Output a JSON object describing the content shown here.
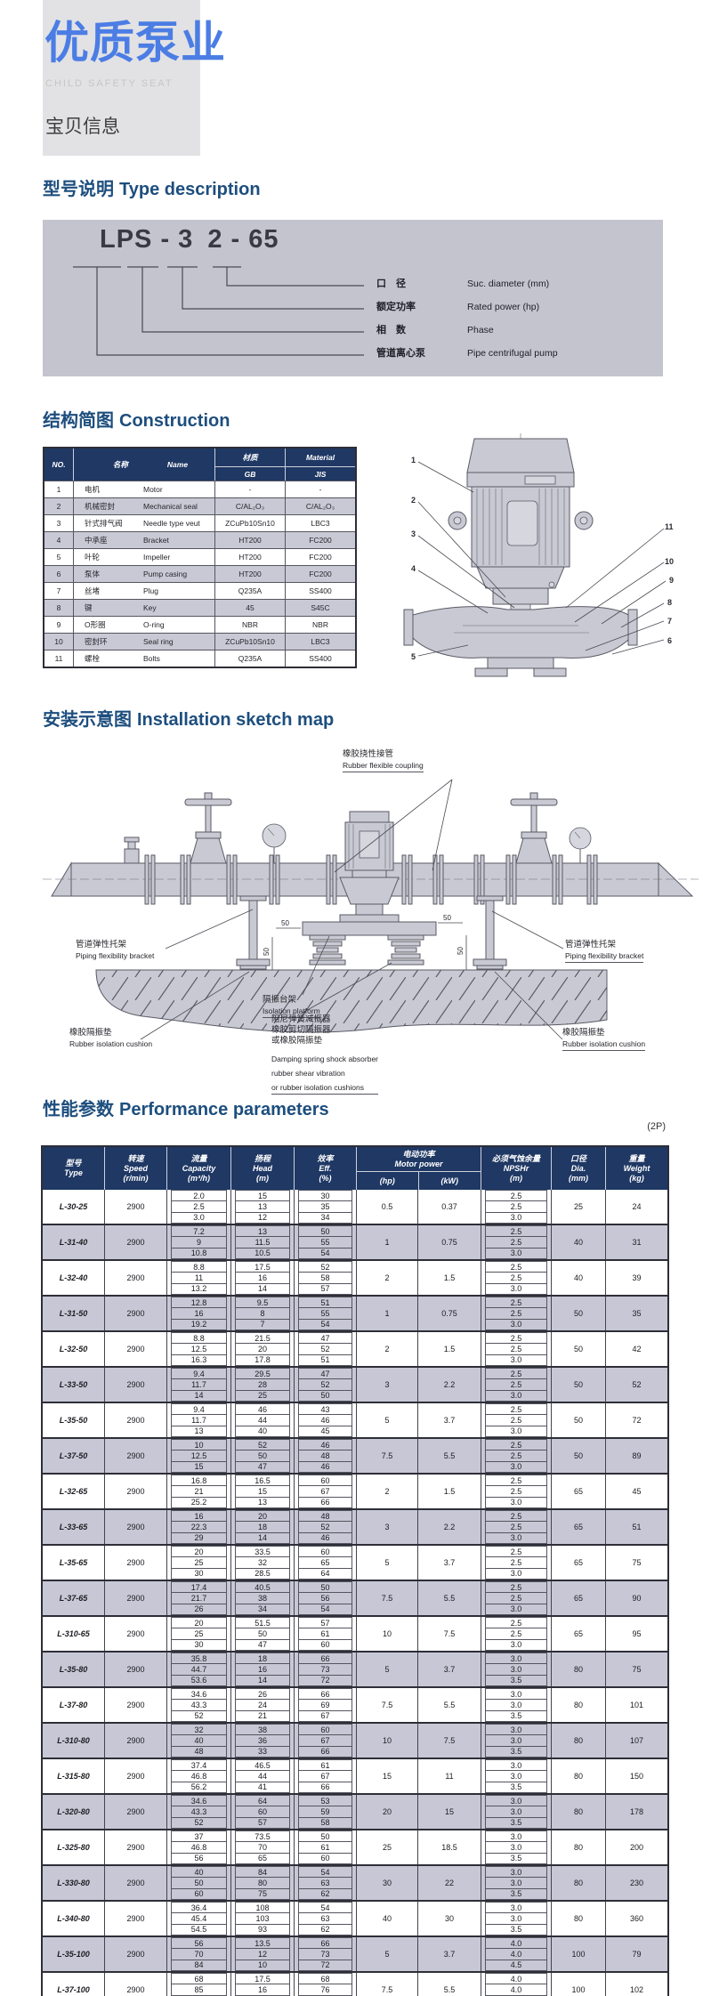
{
  "colors": {
    "accent_blue": "#4b7de4",
    "heading_navy": "#1d4e7e",
    "table_header_navy": "#1f3864",
    "row_shade": "#c7c7d5",
    "panel_gray": "#c4c4ce",
    "header_block_gray": "#e2e2e4"
  },
  "header": {
    "title": "优质泵业",
    "subtitle": "CHILD SAFETY SEAT",
    "tagline": "宝贝信息"
  },
  "headings": {
    "type": {
      "cn": "型号说明",
      "en": "Type description"
    },
    "construction": {
      "cn": "结构简图",
      "en": "Construction"
    },
    "installation": {
      "cn": "安装示意图",
      "en": "Installation sketch map"
    },
    "performance": {
      "cn": "性能参数",
      "en": "Performance parameters"
    }
  },
  "type_code": {
    "part1": "LPS - 3",
    "part2": "2 - 65",
    "labels": [
      {
        "cn": "口　径",
        "en": "Suc. diameter (mm)"
      },
      {
        "cn": "额定功率",
        "en": "Rated power (hp)"
      },
      {
        "cn": "相　数",
        "en": "Phase"
      },
      {
        "cn": "管道离心泵",
        "en": "Pipe centrifugal pump"
      }
    ]
  },
  "construction_table": {
    "headers": {
      "no": "NO.",
      "name_cn": "名称",
      "name_en": "Name",
      "material_cn": "材质",
      "material_en": "Material",
      "gb": "GB",
      "jis": "JIS"
    },
    "rows": [
      [
        "1",
        "电机",
        "Motor",
        "-",
        "-"
      ],
      [
        "2",
        "机械密封",
        "Mechanical seal",
        "C/AL₂O₃",
        "C/AL₂O₃"
      ],
      [
        "3",
        "针式排气阀",
        "Needle type veut",
        "ZCuPb10Sn10",
        "LBC3"
      ],
      [
        "4",
        "中承座",
        "Bracket",
        "HT200",
        "FC200"
      ],
      [
        "5",
        "叶轮",
        "Impeller",
        "HT200",
        "FC200"
      ],
      [
        "6",
        "泵体",
        "Pump casing",
        "HT200",
        "FC200"
      ],
      [
        "7",
        "丝堵",
        "Plug",
        "Q235A",
        "SS400"
      ],
      [
        "8",
        "键",
        "Key",
        "45",
        "S45C"
      ],
      [
        "9",
        "O形圈",
        "O-ring",
        "NBR",
        "NBR"
      ],
      [
        "10",
        "密封环",
        "Seal ring",
        "ZCuPb10Sn10",
        "LBC3"
      ],
      [
        "11",
        "螺栓",
        "Bolts",
        "Q235A",
        "SS400"
      ]
    ]
  },
  "pump_callouts": [
    "1",
    "2",
    "3",
    "4",
    "5",
    "6",
    "7",
    "8",
    "9",
    "10",
    "11"
  ],
  "installation": {
    "labels": {
      "coupling": {
        "cn": "橡胶挠性接管",
        "en": "Rubber flexible coupling"
      },
      "bracket_left": {
        "cn": "管道弹性托架",
        "en": "Piping flexibility bracket"
      },
      "bracket_right": {
        "cn": "管道弹性托架",
        "en": "Piping flexibility bracket"
      },
      "cushion_left": {
        "cn": "橡胶隔振垫",
        "en": "Rubber isolation cushion"
      },
      "cushion_right": {
        "cn": "橡胶隔振垫",
        "en": "Rubber isolation cushion"
      },
      "platform": {
        "cn": "隔振台架",
        "en": "Isolation platform"
      },
      "damping": {
        "cn1": "阻尼弹簧减振器",
        "cn2": "橡胶剪切隔振器",
        "cn3": "或橡胶隔振垫",
        "en1": "Damping spring shock absorber",
        "en2": "rubber shear vibration",
        "en3": "or rubber isolation cushions"
      }
    },
    "dims": [
      "50",
      "50",
      "50",
      "50"
    ]
  },
  "performance_note": "(2P)",
  "performance_table": {
    "headers": {
      "type_cn": "型号",
      "type_en": "Type",
      "speed_cn": "转速",
      "speed_en": "Speed",
      "speed_u": "(r/min)",
      "cap_cn": "流量",
      "cap_en": "Capacity",
      "cap_u": "(m³/h)",
      "head_cn": "扬程",
      "head_en": "Head",
      "head_u": "(m)",
      "eff_cn": "效率",
      "eff_en": "Eff.",
      "eff_u": "(%)",
      "mp_cn": "电动功率",
      "mp_en": "Motor power",
      "hp": "(hp)",
      "kw": "(kW)",
      "np_cn": "必须气蚀余量",
      "np_en": "NPSHr",
      "np_u": "(m)",
      "dia_cn": "口径",
      "dia_en": "Dia.",
      "dia_u": "(mm)",
      "wt_cn": "重量",
      "wt_en": "Weight",
      "wt_u": "(kg)"
    },
    "rows": [
      {
        "model": "L-30-25",
        "speed": "2900",
        "capacity": [
          "2.0",
          "2.5",
          "3.0"
        ],
        "head": [
          "15",
          "13",
          "12"
        ],
        "eff": [
          "30",
          "35",
          "34"
        ],
        "hp": "0.5",
        "kw": "0.37",
        "npshr": [
          "2.5",
          "2.5",
          "3.0"
        ],
        "dia": "25",
        "weight": "24"
      },
      {
        "model": "L-31-40",
        "speed": "2900",
        "capacity": [
          "7.2",
          "9",
          "10.8"
        ],
        "head": [
          "13",
          "11.5",
          "10.5"
        ],
        "eff": [
          "50",
          "55",
          "54"
        ],
        "hp": "1",
        "kw": "0.75",
        "npshr": [
          "2.5",
          "2.5",
          "3.0"
        ],
        "dia": "40",
        "weight": "31"
      },
      {
        "model": "L-32-40",
        "speed": "2900",
        "capacity": [
          "8.8",
          "11",
          "13.2"
        ],
        "head": [
          "17.5",
          "16",
          "14"
        ],
        "eff": [
          "52",
          "58",
          "57"
        ],
        "hp": "2",
        "kw": "1.5",
        "npshr": [
          "2.5",
          "2.5",
          "3.0"
        ],
        "dia": "40",
        "weight": "39"
      },
      {
        "model": "L-31-50",
        "speed": "2900",
        "capacity": [
          "12.8",
          "16",
          "19.2"
        ],
        "head": [
          "9.5",
          "8",
          "7"
        ],
        "eff": [
          "51",
          "55",
          "54"
        ],
        "hp": "1",
        "kw": "0.75",
        "npshr": [
          "2.5",
          "2.5",
          "3.0"
        ],
        "dia": "50",
        "weight": "35"
      },
      {
        "model": "L-32-50",
        "speed": "2900",
        "capacity": [
          "8.8",
          "12.5",
          "16.3"
        ],
        "head": [
          "21.5",
          "20",
          "17.8"
        ],
        "eff": [
          "47",
          "52",
          "51"
        ],
        "hp": "2",
        "kw": "1.5",
        "npshr": [
          "2.5",
          "2.5",
          "3.0"
        ],
        "dia": "50",
        "weight": "42"
      },
      {
        "model": "L-33-50",
        "speed": "2900",
        "capacity": [
          "9.4",
          "11.7",
          "14"
        ],
        "head": [
          "29.5",
          "28",
          "25"
        ],
        "eff": [
          "47",
          "52",
          "50"
        ],
        "hp": "3",
        "kw": "2.2",
        "npshr": [
          "2.5",
          "2.5",
          "3.0"
        ],
        "dia": "50",
        "weight": "52"
      },
      {
        "model": "L-35-50",
        "speed": "2900",
        "capacity": [
          "9.4",
          "11.7",
          "13"
        ],
        "head": [
          "46",
          "44",
          "40"
        ],
        "eff": [
          "43",
          "46",
          "45"
        ],
        "hp": "5",
        "kw": "3.7",
        "npshr": [
          "2.5",
          "2.5",
          "3.0"
        ],
        "dia": "50",
        "weight": "72"
      },
      {
        "model": "L-37-50",
        "speed": "2900",
        "capacity": [
          "10",
          "12.5",
          "15"
        ],
        "head": [
          "52",
          "50",
          "47"
        ],
        "eff": [
          "46",
          "48",
          "46"
        ],
        "hp": "7.5",
        "kw": "5.5",
        "npshr": [
          "2.5",
          "2.5",
          "3.0"
        ],
        "dia": "50",
        "weight": "89"
      },
      {
        "model": "L-32-65",
        "speed": "2900",
        "capacity": [
          "16.8",
          "21",
          "25.2"
        ],
        "head": [
          "16.5",
          "15",
          "13"
        ],
        "eff": [
          "60",
          "67",
          "66"
        ],
        "hp": "2",
        "kw": "1.5",
        "npshr": [
          "2.5",
          "2.5",
          "3.0"
        ],
        "dia": "65",
        "weight": "45"
      },
      {
        "model": "L-33-65",
        "speed": "2900",
        "capacity": [
          "16",
          "22.3",
          "29"
        ],
        "head": [
          "20",
          "18",
          "14"
        ],
        "eff": [
          "48",
          "52",
          "46"
        ],
        "hp": "3",
        "kw": "2.2",
        "npshr": [
          "2.5",
          "2.5",
          "3.0"
        ],
        "dia": "65",
        "weight": "51"
      },
      {
        "model": "L-35-65",
        "speed": "2900",
        "capacity": [
          "20",
          "25",
          "30"
        ],
        "head": [
          "33.5",
          "32",
          "28.5"
        ],
        "eff": [
          "60",
          "65",
          "64"
        ],
        "hp": "5",
        "kw": "3.7",
        "npshr": [
          "2.5",
          "2.5",
          "3.0"
        ],
        "dia": "65",
        "weight": "75"
      },
      {
        "model": "L-37-65",
        "speed": "2900",
        "capacity": [
          "17.4",
          "21.7",
          "26"
        ],
        "head": [
          "40.5",
          "38",
          "34"
        ],
        "eff": [
          "50",
          "56",
          "54"
        ],
        "hp": "7.5",
        "kw": "5.5",
        "npshr": [
          "2.5",
          "2.5",
          "3.0"
        ],
        "dia": "65",
        "weight": "90"
      },
      {
        "model": "L-310-65",
        "speed": "2900",
        "capacity": [
          "20",
          "25",
          "30"
        ],
        "head": [
          "51.5",
          "50",
          "47"
        ],
        "eff": [
          "57",
          "61",
          "60"
        ],
        "hp": "10",
        "kw": "7.5",
        "npshr": [
          "2.5",
          "2.5",
          "3.0"
        ],
        "dia": "65",
        "weight": "95"
      },
      {
        "model": "L-35-80",
        "speed": "2900",
        "capacity": [
          "35.8",
          "44.7",
          "53.6"
        ],
        "head": [
          "18",
          "16",
          "14"
        ],
        "eff": [
          "66",
          "73",
          "72"
        ],
        "hp": "5",
        "kw": "3.7",
        "npshr": [
          "3.0",
          "3.0",
          "3.5"
        ],
        "dia": "80",
        "weight": "75"
      },
      {
        "model": "L-37-80",
        "speed": "2900",
        "capacity": [
          "34.6",
          "43.3",
          "52"
        ],
        "head": [
          "26",
          "24",
          "21"
        ],
        "eff": [
          "66",
          "69",
          "67"
        ],
        "hp": "7.5",
        "kw": "5.5",
        "npshr": [
          "3.0",
          "3.0",
          "3.5"
        ],
        "dia": "80",
        "weight": "101"
      },
      {
        "model": "L-310-80",
        "speed": "2900",
        "capacity": [
          "32",
          "40",
          "48"
        ],
        "head": [
          "38",
          "36",
          "33"
        ],
        "eff": [
          "60",
          "67",
          "66"
        ],
        "hp": "10",
        "kw": "7.5",
        "npshr": [
          "3.0",
          "3.0",
          "3.5"
        ],
        "dia": "80",
        "weight": "107"
      },
      {
        "model": "L-315-80",
        "speed": "2900",
        "capacity": [
          "37.4",
          "46.8",
          "56.2"
        ],
        "head": [
          "46.5",
          "44",
          "41"
        ],
        "eff": [
          "61",
          "67",
          "66"
        ],
        "hp": "15",
        "kw": "11",
        "npshr": [
          "3.0",
          "3.0",
          "3.5"
        ],
        "dia": "80",
        "weight": "150"
      },
      {
        "model": "L-320-80",
        "speed": "2900",
        "capacity": [
          "34.6",
          "43.3",
          "52"
        ],
        "head": [
          "64",
          "60",
          "57"
        ],
        "eff": [
          "53",
          "59",
          "58"
        ],
        "hp": "20",
        "kw": "15",
        "npshr": [
          "3.0",
          "3.0",
          "3.5"
        ],
        "dia": "80",
        "weight": "178"
      },
      {
        "model": "L-325-80",
        "speed": "2900",
        "capacity": [
          "37",
          "46.8",
          "56"
        ],
        "head": [
          "73.5",
          "70",
          "65"
        ],
        "eff": [
          "50",
          "61",
          "60"
        ],
        "hp": "25",
        "kw": "18.5",
        "npshr": [
          "3.0",
          "3.0",
          "3.5"
        ],
        "dia": "80",
        "weight": "200"
      },
      {
        "model": "L-330-80",
        "speed": "2900",
        "capacity": [
          "40",
          "50",
          "60"
        ],
        "head": [
          "84",
          "80",
          "75"
        ],
        "eff": [
          "54",
          "63",
          "62"
        ],
        "hp": "30",
        "kw": "22",
        "npshr": [
          "3.0",
          "3.0",
          "3.5"
        ],
        "dia": "80",
        "weight": "230"
      },
      {
        "model": "L-340-80",
        "speed": "2900",
        "capacity": [
          "36.4",
          "45.4",
          "54.5"
        ],
        "head": [
          "108",
          "103",
          "93"
        ],
        "eff": [
          "54",
          "63",
          "62"
        ],
        "hp": "40",
        "kw": "30",
        "npshr": [
          "3.0",
          "3.0",
          "3.5"
        ],
        "dia": "80",
        "weight": "360"
      },
      {
        "model": "L-35-100",
        "speed": "2900",
        "capacity": [
          "56",
          "70",
          "84"
        ],
        "head": [
          "13.5",
          "12",
          "10"
        ],
        "eff": [
          "66",
          "73",
          "72"
        ],
        "hp": "5",
        "kw": "3.7",
        "npshr": [
          "4.0",
          "4.0",
          "4.5"
        ],
        "dia": "100",
        "weight": "79"
      },
      {
        "model": "L-37-100",
        "speed": "2900",
        "capacity": [
          "68",
          "85",
          "102"
        ],
        "head": [
          "17.5",
          "16",
          "14"
        ],
        "eff": [
          "68",
          "76",
          "75"
        ],
        "hp": "7.5",
        "kw": "5.5",
        "npshr": [
          "4.0",
          "4.0",
          "4.5"
        ],
        "dia": "100",
        "weight": "102"
      }
    ]
  }
}
